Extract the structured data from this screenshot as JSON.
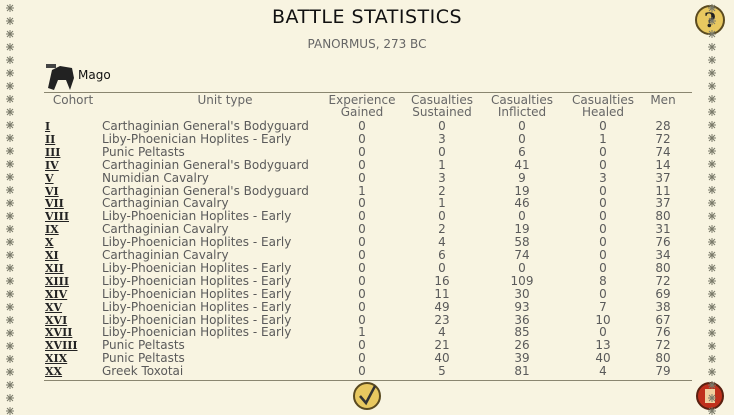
{
  "header": {
    "title": "BATTLE STATISTICS",
    "subtitle": "PANORMUS, 273 BC",
    "commander": "Mago"
  },
  "table": {
    "columns": [
      "Cohort",
      "Unit type",
      "Experience Gained",
      "Casualties Sustained",
      "Casualties Inflicted",
      "Casualties Healed",
      "Men"
    ],
    "rows": [
      [
        "I",
        "Carthaginian General's Bodyguard",
        0,
        0,
        0,
        0,
        28
      ],
      [
        "II",
        "Liby-Phoenician Hoplites - Early",
        0,
        3,
        0,
        1,
        72
      ],
      [
        "III",
        "Punic Peltasts",
        0,
        0,
        6,
        0,
        74
      ],
      [
        "IV",
        "Carthaginian General's Bodyguard",
        0,
        1,
        41,
        0,
        14
      ],
      [
        "V",
        "Numidian Cavalry",
        0,
        3,
        9,
        3,
        37
      ],
      [
        "VI",
        "Carthaginian General's Bodyguard",
        1,
        2,
        19,
        0,
        11
      ],
      [
        "VII",
        "Carthaginian Cavalry",
        0,
        1,
        46,
        0,
        37
      ],
      [
        "VIII",
        "Liby-Phoenician Hoplites - Early",
        0,
        0,
        0,
        0,
        80
      ],
      [
        "IX",
        "Carthaginian Cavalry",
        0,
        2,
        19,
        0,
        31
      ],
      [
        "X",
        "Liby-Phoenician Hoplites - Early",
        0,
        4,
        58,
        0,
        76
      ],
      [
        "XI",
        "Carthaginian Cavalry",
        0,
        6,
        74,
        0,
        34
      ],
      [
        "XII",
        "Liby-Phoenician Hoplites - Early",
        0,
        0,
        0,
        0,
        80
      ],
      [
        "XIII",
        "Liby-Phoenician Hoplites - Early",
        0,
        16,
        109,
        8,
        72
      ],
      [
        "XIV",
        "Liby-Phoenician Hoplites - Early",
        0,
        11,
        30,
        0,
        69
      ],
      [
        "XV",
        "Liby-Phoenician Hoplites - Early",
        0,
        49,
        93,
        7,
        38
      ],
      [
        "XVI",
        "Liby-Phoenician Hoplites - Early",
        0,
        23,
        36,
        10,
        67
      ],
      [
        "XVII",
        "Liby-Phoenician Hoplites - Early",
        1,
        4,
        85,
        0,
        76
      ],
      [
        "XVIII",
        "Punic Peltasts",
        0,
        21,
        26,
        13,
        72
      ],
      [
        "XIX",
        "Punic Peltasts",
        0,
        40,
        39,
        40,
        80
      ],
      [
        "XX",
        "Greek Toxotai",
        0,
        5,
        81,
        4,
        79
      ]
    ]
  }
}
